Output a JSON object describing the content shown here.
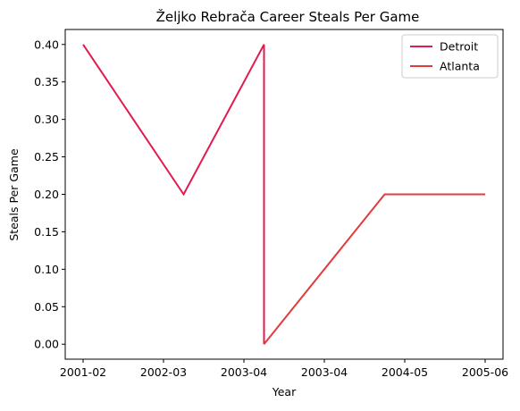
{
  "chart_data": {
    "type": "line",
    "title": "Željko Rebrača Career Steals Per Game",
    "xlabel": "Year",
    "ylabel": "Steals Per Game",
    "categories": [
      "2001-02",
      "2002-03",
      "2003-04",
      "2003-04",
      "2004-05",
      "2005-06"
    ],
    "ylim": [
      -0.02,
      0.42
    ],
    "yticks": [
      "0.00",
      "0.05",
      "0.10",
      "0.15",
      "0.20",
      "0.25",
      "0.30",
      "0.35",
      "0.40"
    ],
    "grid": false,
    "legend_position": "top-right",
    "series": [
      {
        "name": "Detroit",
        "color": "#e31a4f",
        "points": [
          {
            "x": 0,
            "y": 0.4
          },
          {
            "x": 1,
            "y": 0.2
          },
          {
            "x": 2,
            "y": 0.4
          },
          {
            "x": 2,
            "y": 0.0
          }
        ]
      },
      {
        "name": "Atlanta",
        "color": "#e03c3c",
        "points": [
          {
            "x": 2,
            "y": 0.0
          },
          {
            "x": 3,
            "y": 0.2
          },
          {
            "x": 4,
            "y": 0.2
          }
        ]
      }
    ]
  }
}
